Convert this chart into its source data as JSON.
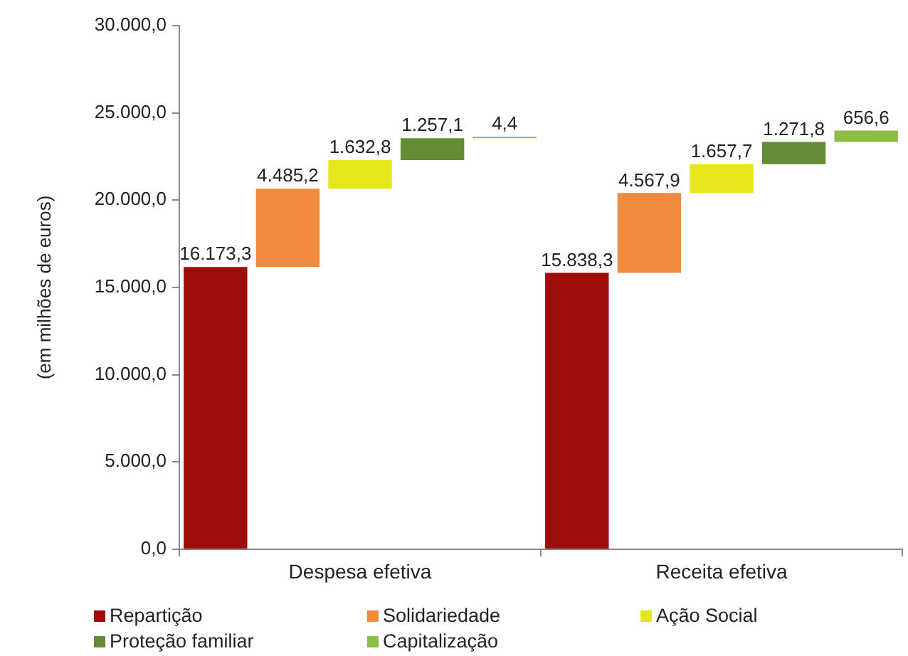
{
  "chart_data": {
    "type": "bar",
    "categories": [
      "Despesa efetiva",
      "Receita efetiva"
    ],
    "ylabel": "(em milhões de euros)",
    "ylim": [
      0,
      30000
    ],
    "yticks": [
      {
        "value": 0,
        "label": "0,0"
      },
      {
        "value": 5000,
        "label": "5.000,0"
      },
      {
        "value": 10000,
        "label": "10.000,0"
      },
      {
        "value": 15000,
        "label": "15.000,0"
      },
      {
        "value": 20000,
        "label": "20.000,0"
      },
      {
        "value": 25000,
        "label": "25.000,0"
      },
      {
        "value": 30000,
        "label": "30.000,0"
      }
    ],
    "series": [
      {
        "name": "Repartição",
        "color": "#9e0c0c",
        "values": [
          16173.3,
          15838.3
        ],
        "base": [
          0,
          0
        ],
        "value_labels": [
          "16.173,3",
          "15.838,3"
        ]
      },
      {
        "name": "Solidariedade",
        "color": "#f08a3c",
        "values": [
          4485.2,
          4567.9
        ],
        "base": [
          16173.3,
          15838.3
        ],
        "value_labels": [
          "4.485,2",
          "4.567,9"
        ]
      },
      {
        "name": "Ação Social",
        "color": "#e6e61c",
        "values": [
          1632.8,
          1657.7
        ],
        "base": [
          20658.5,
          20406.2
        ],
        "value_labels": [
          "1.632,8",
          "1.657,7"
        ]
      },
      {
        "name": "Proteção familiar",
        "color": "#648c34",
        "values": [
          1257.1,
          1271.8
        ],
        "base": [
          22291.3,
          22063.9
        ],
        "value_labels": [
          "1.257,1",
          "1.271,8"
        ]
      },
      {
        "name": "Capitalização",
        "color": "#8cbd48",
        "values": [
          4.4,
          656.6
        ],
        "base": [
          23548.4,
          23335.7
        ],
        "value_labels": [
          "4,4",
          "656,6"
        ]
      }
    ],
    "legend": "bottom"
  }
}
